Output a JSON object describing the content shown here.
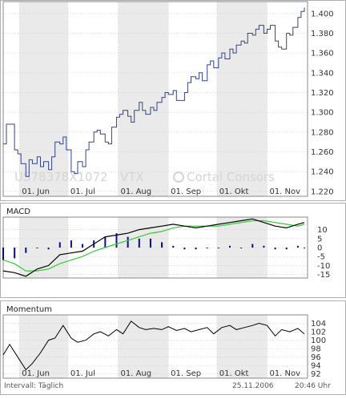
{
  "chart_data": [
    {
      "type": "line",
      "panel": "price",
      "instrument": "US78378X1072",
      "exchange": "VTX",
      "watermark": "Cortal Consors",
      "x": [
        "2006-05-22",
        "2006-05-24",
        "2006-05-26",
        "2006-05-29",
        "2006-05-31",
        "2006-06-02",
        "2006-06-05",
        "2006-06-07",
        "2006-06-09",
        "2006-06-12",
        "2006-06-14",
        "2006-06-16",
        "2006-06-19",
        "2006-06-21",
        "2006-06-23",
        "2006-06-26",
        "2006-06-28",
        "2006-06-30",
        "2006-07-03",
        "2006-07-05",
        "2006-07-07",
        "2006-07-10",
        "2006-07-12",
        "2006-07-14",
        "2006-07-17",
        "2006-07-19",
        "2006-07-21",
        "2006-07-24",
        "2006-07-26",
        "2006-07-28",
        "2006-07-31",
        "2006-08-02",
        "2006-08-04",
        "2006-08-07",
        "2006-08-09",
        "2006-08-11",
        "2006-08-14",
        "2006-08-16",
        "2006-08-18",
        "2006-08-21",
        "2006-08-23",
        "2006-08-25",
        "2006-08-28",
        "2006-08-30",
        "2006-09-01",
        "2006-09-04",
        "2006-09-06",
        "2006-09-08",
        "2006-09-11",
        "2006-09-13",
        "2006-09-15",
        "2006-09-18",
        "2006-09-20",
        "2006-09-22",
        "2006-09-25",
        "2006-09-27",
        "2006-09-29",
        "2006-10-02",
        "2006-10-04",
        "2006-10-06",
        "2006-10-09",
        "2006-10-11",
        "2006-10-13",
        "2006-10-16",
        "2006-10-18",
        "2006-10-20",
        "2006-10-23",
        "2006-10-25",
        "2006-10-27",
        "2006-10-30",
        "2006-11-01",
        "2006-11-03",
        "2006-11-06",
        "2006-11-08",
        "2006-11-10",
        "2006-11-13",
        "2006-11-15",
        "2006-11-17",
        "2006-11-20",
        "2006-11-22",
        "2006-11-24"
      ],
      "series": [
        {
          "values": [
            1.268,
            1.288,
            1.288,
            1.262,
            1.258,
            1.248,
            1.235,
            1.252,
            1.248,
            1.255,
            1.245,
            1.25,
            1.242,
            1.255,
            1.27,
            1.268,
            1.275,
            1.262,
            1.24,
            1.238,
            1.25,
            1.245,
            1.262,
            1.27,
            1.28,
            1.282,
            1.278,
            1.27,
            1.268,
            1.285,
            1.295,
            1.298,
            1.302,
            1.296,
            1.29,
            1.302,
            1.31,
            1.302,
            1.298,
            1.305,
            1.302,
            1.31,
            1.315,
            1.32,
            1.318,
            1.322,
            1.312,
            1.312,
            1.32,
            1.33,
            1.336,
            1.334,
            1.34,
            1.332,
            1.348,
            1.352,
            1.345,
            1.355,
            1.36,
            1.354,
            1.364,
            1.36,
            1.368,
            1.372,
            1.37,
            1.38,
            1.378,
            1.384,
            1.388,
            1.38,
            1.384,
            1.388,
            1.372,
            1.366,
            1.364,
            1.38,
            1.378,
            1.386,
            1.396,
            1.402,
            1.406
          ]
        }
      ],
      "x_ticks": [
        "01. Jun",
        "01. Jul",
        "01. Aug",
        "01. Sep",
        "01. Okt",
        "01. Nov"
      ],
      "y_ticks": [
        "1.220",
        "1.240",
        "1.260",
        "1.280",
        "1.300",
        "1.320",
        "1.340",
        "1.360",
        "1.380",
        "1.400"
      ],
      "ylim": [
        1.215,
        1.412
      ],
      "grid": true,
      "shaded_months": [
        "Jun",
        "Aug",
        "Okt"
      ]
    },
    {
      "type": "bar",
      "panel": "macd",
      "title": "MACD",
      "x": [
        "2006-05-22",
        "2006-05-29",
        "2006-06-05",
        "2006-06-12",
        "2006-06-19",
        "2006-06-26",
        "2006-07-03",
        "2006-07-10",
        "2006-07-17",
        "2006-07-24",
        "2006-07-31",
        "2006-08-07",
        "2006-08-14",
        "2006-08-21",
        "2006-08-28",
        "2006-09-04",
        "2006-09-11",
        "2006-09-18",
        "2006-09-25",
        "2006-10-02",
        "2006-10-09",
        "2006-10-16",
        "2006-10-23",
        "2006-10-30",
        "2006-11-06",
        "2006-11-13",
        "2006-11-20",
        "2006-11-24"
      ],
      "series": [
        {
          "values": [
            -7,
            -6,
            -3,
            0,
            -1,
            3,
            4,
            2,
            4,
            6,
            8,
            6,
            5,
            5,
            3,
            1,
            -1,
            -1,
            0,
            0,
            1,
            0,
            2,
            1,
            -1,
            -1,
            1,
            0
          ]
        },
        {
          "values": [
            -13,
            -14,
            -16,
            -12,
            -10,
            -4,
            -3,
            -2,
            2,
            6,
            7,
            8,
            10,
            11,
            12,
            13,
            12,
            11,
            12,
            13,
            14,
            15,
            16,
            14,
            12,
            11,
            13,
            14
          ]
        },
        {
          "values": [
            -7,
            -9,
            -13,
            -13,
            -12,
            -9,
            -7,
            -5,
            -2,
            0,
            2,
            4,
            6,
            8,
            9,
            11,
            12,
            12,
            12,
            12,
            13,
            14,
            15,
            15,
            14,
            13,
            12,
            13
          ]
        }
      ],
      "y_ticks": [
        "10",
        "5",
        "0",
        "-5",
        "-10",
        "-15"
      ],
      "ylim": [
        -17,
        17
      ],
      "grid": true,
      "line_colors": [
        "#0a0a99",
        "#000000",
        "#33cc33"
      ]
    },
    {
      "type": "line",
      "panel": "momentum",
      "title": "Momentum",
      "x": [
        "2006-05-22",
        "2006-05-26",
        "2006-05-31",
        "2006-06-05",
        "2006-06-09",
        "2006-06-14",
        "2006-06-19",
        "2006-06-23",
        "2006-06-28",
        "2006-07-03",
        "2006-07-07",
        "2006-07-12",
        "2006-07-17",
        "2006-07-21",
        "2006-07-26",
        "2006-07-31",
        "2006-08-04",
        "2006-08-09",
        "2006-08-14",
        "2006-08-18",
        "2006-08-23",
        "2006-08-28",
        "2006-09-01",
        "2006-09-06",
        "2006-09-11",
        "2006-09-15",
        "2006-09-20",
        "2006-09-25",
        "2006-09-29",
        "2006-10-04",
        "2006-10-09",
        "2006-10-13",
        "2006-10-18",
        "2006-10-23",
        "2006-10-27",
        "2006-11-01",
        "2006-11-06",
        "2006-11-10",
        "2006-11-15",
        "2006-11-20",
        "2006-11-24"
      ],
      "series": [
        {
          "values": [
            96.5,
            99.0,
            96.0,
            93.0,
            94.5,
            97.0,
            100.0,
            100.5,
            103.5,
            100.5,
            99.5,
            100.0,
            101.5,
            102.0,
            101.0,
            102.5,
            101.5,
            104.5,
            103.0,
            102.5,
            102.8,
            102.5,
            103.2,
            102.3,
            102.8,
            102.0,
            102.5,
            103.0,
            101.5,
            103.0,
            103.5,
            102.5,
            103.0,
            103.5,
            104.0,
            103.5,
            101.0,
            102.5,
            102.0,
            102.8,
            101.5
          ]
        }
      ],
      "x_ticks": [
        "01. Jun",
        "01. Jul",
        "01. Aug",
        "01. Sep",
        "01. Okt",
        "01. Nov"
      ],
      "y_ticks": [
        "104",
        "102",
        "100",
        "98",
        "96",
        "94",
        "92"
      ],
      "ylim": [
        91,
        106
      ],
      "grid": true
    }
  ],
  "footer": {
    "interval": "Intervall: Täglich",
    "date": "25.11.2006",
    "time": "20:46 Uhr"
  },
  "colors": {
    "price_line": "#334488",
    "shade": "#eaeaea",
    "grid": "#c8c8c8",
    "frame": "#888888"
  }
}
